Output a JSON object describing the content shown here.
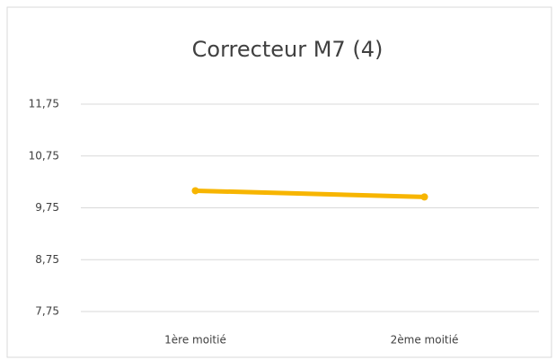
{
  "chart_data": {
    "type": "line",
    "title": "Correcteur M7 (4)",
    "categories": [
      "1ère moitié",
      "2ème moitié"
    ],
    "series": [
      {
        "name": "Correcteur M7 (4)",
        "color": "#f7b500",
        "values": [
          10.08,
          9.96
        ]
      }
    ],
    "ylim": [
      7.75,
      11.75
    ],
    "yticks": [
      {
        "value": 7.75,
        "label": "7,75"
      },
      {
        "value": 8.75,
        "label": "8,75"
      },
      {
        "value": 9.75,
        "label": "9,75"
      },
      {
        "value": 10.75,
        "label": "10,75"
      },
      {
        "value": 11.75,
        "label": "11,75"
      }
    ],
    "grid": true
  }
}
